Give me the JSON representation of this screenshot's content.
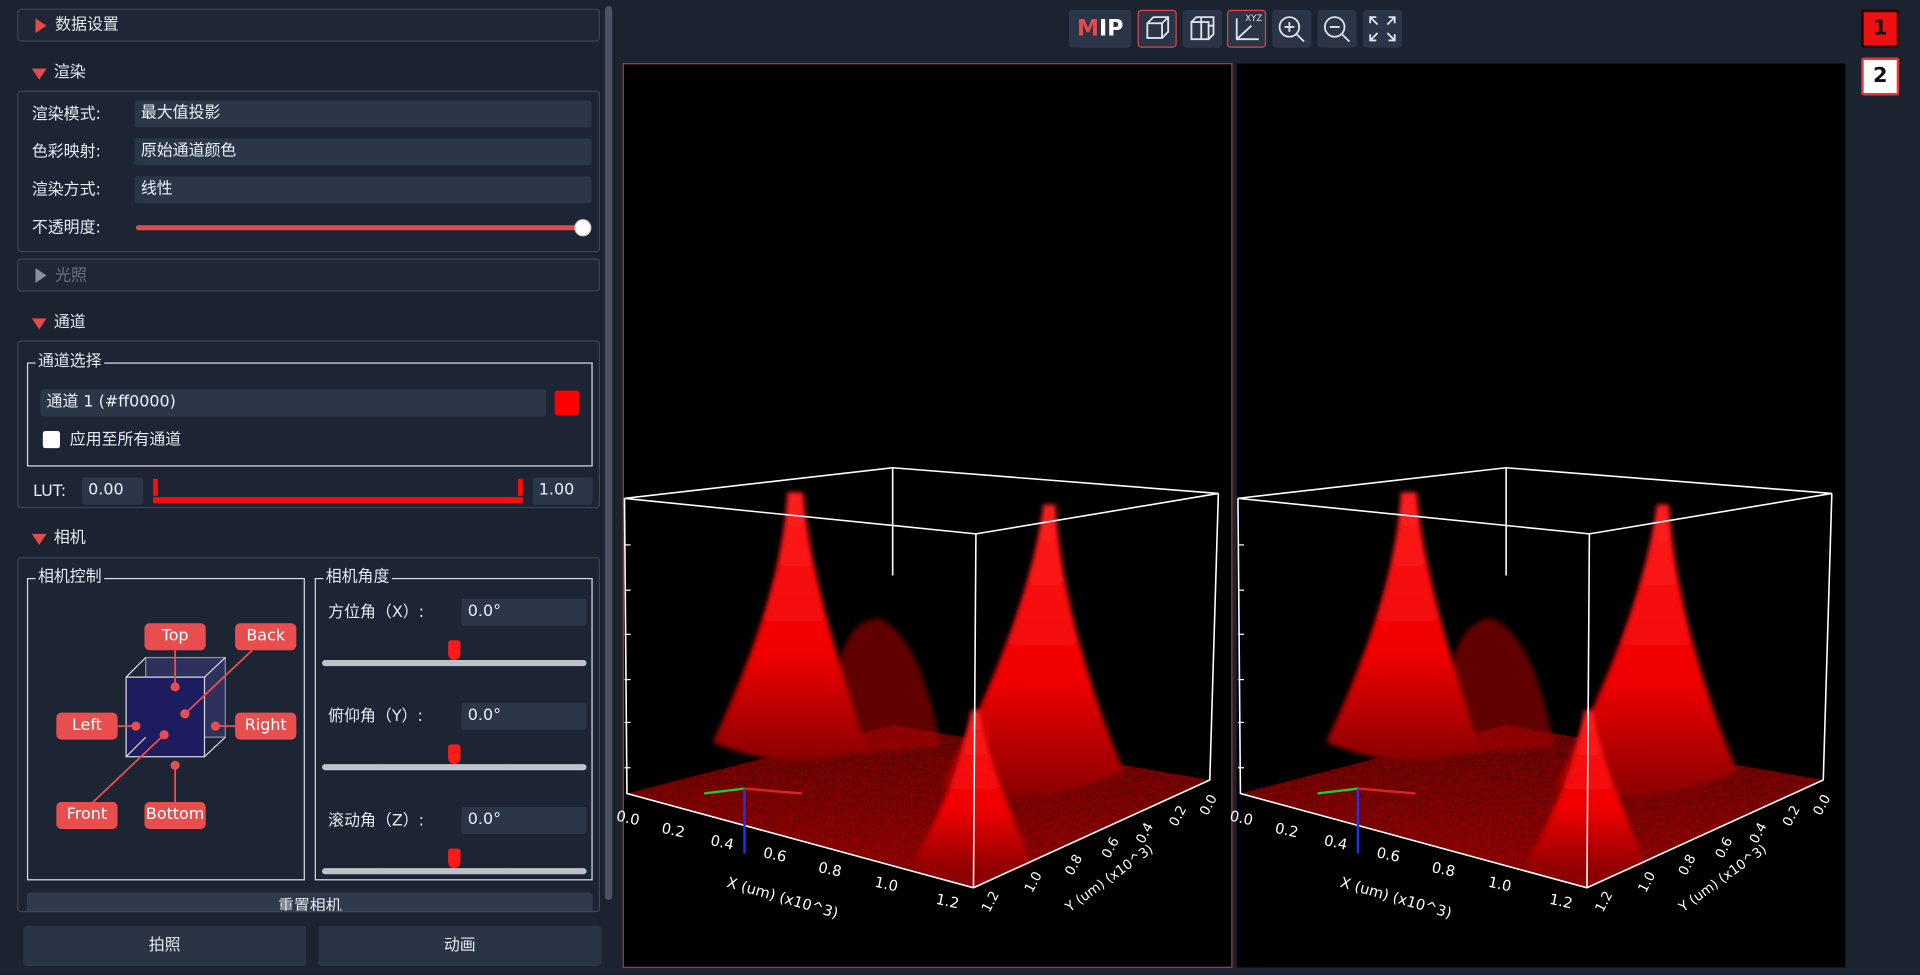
{
  "sidebar": {
    "data_settings": {
      "title": "数据设置"
    },
    "render": {
      "title": "渲染",
      "mode_label": "渲染模式:",
      "mode": "最大值投影",
      "colormap_label": "色彩映射:",
      "colormap": "原始通道颜色",
      "method_label": "渲染方式:",
      "method": "线性",
      "opacity_label": "不透明度:"
    },
    "lighting": {
      "title": "光照"
    },
    "channel": {
      "title": "通道",
      "group": "通道选择",
      "selected": "通道 1 (#ff0000)",
      "apply_all": "应用至所有通道",
      "lut_label": "LUT:",
      "lut_min": "0.00",
      "lut_max": "1.00"
    },
    "camera": {
      "title": "相机",
      "control_group": "相机控制",
      "top": "Top",
      "back": "Back",
      "left": "Left",
      "right": "Right",
      "front": "Front",
      "bottom": "Bottom",
      "angle_group": "相机角度",
      "azimuth_label": "方位角（X）:",
      "azimuth": "0.0°",
      "elevation_label": "俯仰角（Y）:",
      "elevation": "0.0°",
      "roll_label": "滚动角（Z）:",
      "roll": "0.0°",
      "reset": "重置相机"
    },
    "footer": {
      "snapshot": "拍照",
      "animation": "动画"
    }
  },
  "toolbar": {
    "mip": [
      "M",
      "IP"
    ],
    "axes_icon": "XYZ"
  },
  "tabs": [
    "1",
    "2"
  ],
  "views": [
    {
      "x_ticks": [
        "0.0",
        "0.2",
        "0.4",
        "0.6",
        "0.8",
        "1.0",
        "1.2"
      ],
      "y_ticks": [
        "0.0",
        "0.2",
        "0.4",
        "0.6",
        "0.8",
        "1.0",
        "1.2"
      ],
      "x_label": "X (um) (x10^3)",
      "y_label": "Y (um) (x10^3)"
    },
    {
      "x_ticks": [
        "0.0",
        "0.2",
        "0.4",
        "0.6",
        "0.8",
        "1.0",
        "1.2"
      ],
      "y_ticks": [
        "0.0",
        "0.2",
        "0.4",
        "0.6",
        "0.8",
        "1.0",
        "1.2"
      ],
      "x_label": "X (um) (x10^3)",
      "y_label": "Y (um) (x10^3)"
    }
  ]
}
